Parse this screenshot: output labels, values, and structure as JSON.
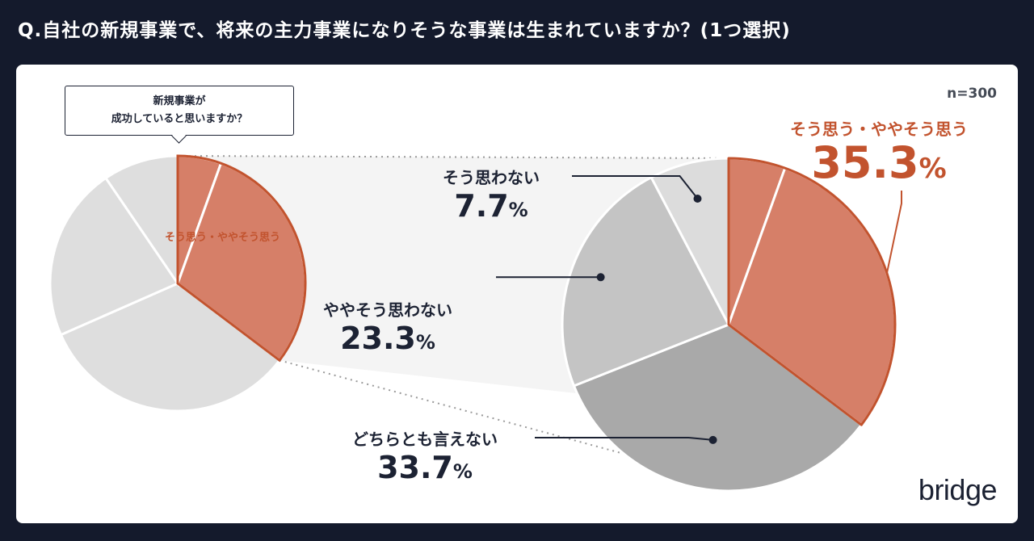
{
  "question": "Q.自社の新規事業で、将来の主力事業になりそうな事業は生まれていますか？(1つ選択)",
  "sample_size": "n=300",
  "brand": "bridge",
  "callout": {
    "line1": "新規事業が",
    "line2": "成功していると思いますか？"
  },
  "colors": {
    "background": "#141a2c",
    "accent": "#c2532e",
    "accent_fill": "#d67f68",
    "gray_light": "#dcdcdc",
    "gray_mid": "#c4c4c4",
    "gray_dark": "#a9a9a9",
    "small_pie_gray": "#dedede"
  },
  "chart_data": [
    {
      "type": "pie",
      "series": [
        {
          "label": "そう思う・ややそう思う",
          "value": 35.3
        }
      ]
    },
    {
      "type": "pie",
      "slices": [
        {
          "label": "そう思う",
          "value": 5.5
        },
        {
          "label": "ややそう思う",
          "value": 29.8
        },
        {
          "label": "どちらとも言えない",
          "value": 33.7
        },
        {
          "label": "ややそう思わない",
          "value": 23.3
        },
        {
          "label": "そう思わない",
          "value": 7.7
        }
      ],
      "labels": {
        "positive_total": {
          "name": "そう思う・ややそう思う",
          "value": "35.3",
          "unit": "%"
        },
        "neutral": {
          "name": "どちらとも言えない",
          "value": "33.7",
          "unit": "%"
        },
        "somewhat_negative": {
          "name": "ややそう思わない",
          "value": "23.3",
          "unit": "%"
        },
        "negative": {
          "name": "そう思わない",
          "value": "7.7",
          "unit": "%"
        }
      }
    }
  ]
}
